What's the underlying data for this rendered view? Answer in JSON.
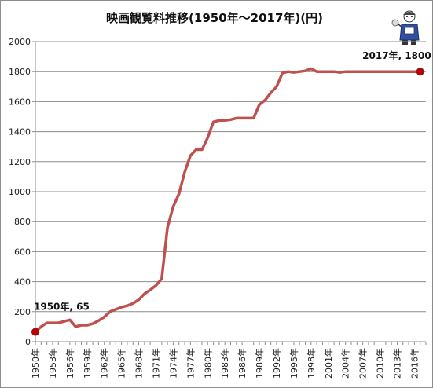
{
  "chart_data": {
    "type": "line",
    "title": "映画観覧料推移(1950年～2017年)(円)",
    "xlabel": "",
    "ylabel": "",
    "ylim": [
      0,
      2000
    ],
    "yticks": [
      0,
      200,
      400,
      600,
      800,
      1000,
      1200,
      1400,
      1600,
      1800,
      2000
    ],
    "grid": true,
    "legend": "none",
    "line_color": "#c0504d",
    "marker_color": "#c00000",
    "x_tick_labels": [
      "1950年",
      "1953年",
      "1956年",
      "1959年",
      "1962年",
      "1965年",
      "1968年",
      "1971年",
      "1974年",
      "1977年",
      "1980年",
      "1983年",
      "1986年",
      "1989年",
      "1992年",
      "1995年",
      "1998年",
      "2001年",
      "2004年",
      "2007年",
      "2010年",
      "2013年",
      "2016年"
    ],
    "series": [
      {
        "x": [
          1950,
          1951,
          1952,
          1953,
          1954,
          1955,
          1956,
          1957,
          1958,
          1959,
          1960,
          1961,
          1962,
          1963,
          1964,
          1965,
          1966,
          1967,
          1968,
          1969,
          1970,
          1971,
          1972,
          1973,
          1974,
          1975,
          1976,
          1977,
          1978,
          1979,
          1980,
          1981,
          1982,
          1983,
          1984,
          1985,
          1986,
          1987,
          1988,
          1989,
          1990,
          1991,
          1992,
          1993,
          1994,
          1995,
          1996,
          1997,
          1998,
          1999,
          2000,
          2001,
          2002,
          2003,
          2004,
          2005,
          2006,
          2007,
          2008,
          2009,
          2010,
          2011,
          2012,
          2013,
          2014,
          2015,
          2016,
          2017
        ],
        "values": [
          65,
          100,
          125,
          125,
          125,
          135,
          145,
          100,
          110,
          110,
          120,
          140,
          165,
          200,
          215,
          230,
          240,
          255,
          280,
          320,
          345,
          375,
          420,
          760,
          900,
          985,
          1130,
          1240,
          1280,
          1280,
          1360,
          1465,
          1475,
          1475,
          1480,
          1490,
          1490,
          1490,
          1490,
          1580,
          1610,
          1660,
          1700,
          1790,
          1800,
          1795,
          1800,
          1805,
          1820,
          1800,
          1800,
          1800,
          1800,
          1795,
          1800,
          1800,
          1800,
          1800,
          1800,
          1800,
          1800,
          1800,
          1800,
          1800,
          1800,
          1800,
          1800,
          1800
        ]
      }
    ],
    "annotations": [
      {
        "text": "1950年, 65",
        "x": 1950,
        "y": 65
      },
      {
        "text": "2017年, 1800",
        "x": 2017,
        "y": 1800
      }
    ]
  }
}
